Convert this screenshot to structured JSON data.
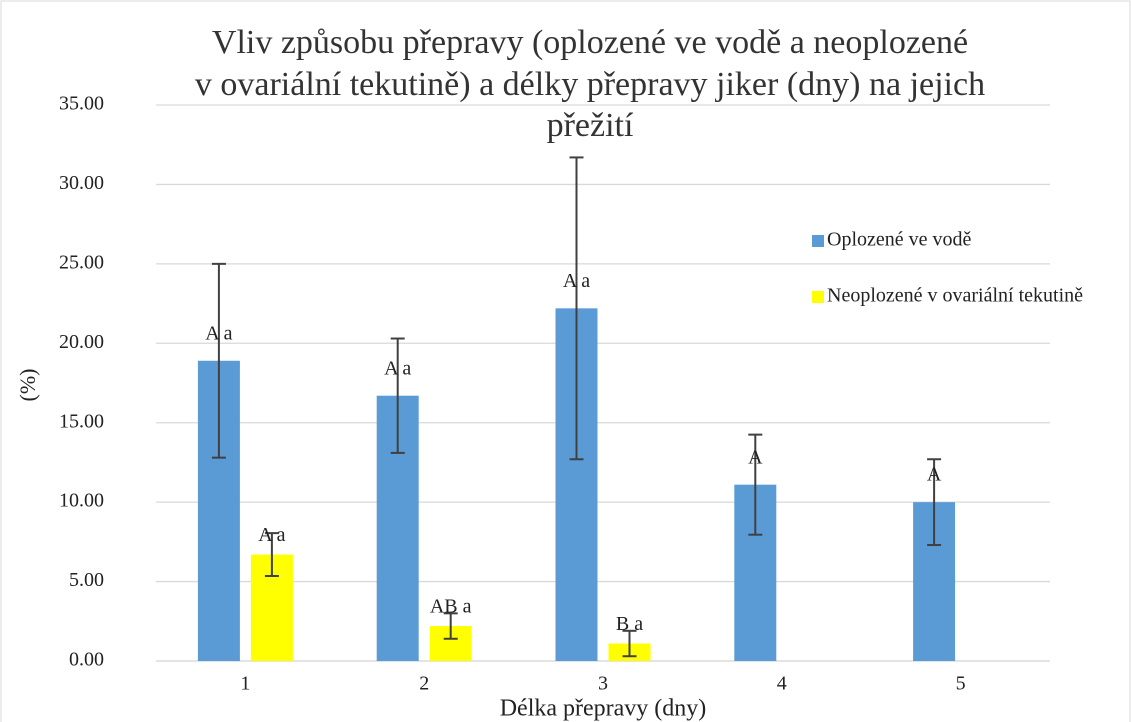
{
  "chart_data": {
    "type": "bar",
    "title": [
      "Vliv způsobu přepravy (oplozené ve vodě a neoplozené",
      "v ovariální tekutině) a délky přepravy jiker (dny) na jejich",
      "přežití"
    ],
    "xlabel": "Délka přepravy (dny)",
    "ylabel": "(%)",
    "categories": [
      "1",
      "2",
      "3",
      "4",
      "5"
    ],
    "series": [
      {
        "name": "Oplozené ve vodě",
        "color": "#5b9bd5",
        "values": [
          18.9,
          16.7,
          22.2,
          11.1,
          10.0
        ],
        "errors": [
          6.1,
          3.6,
          9.5,
          3.15,
          2.7
        ],
        "letters": [
          "A a",
          "A a",
          "A a",
          "A",
          "A"
        ]
      },
      {
        "name": "Neoplozené v ovariální tekutině",
        "color": "#ffff00",
        "values": [
          6.7,
          2.2,
          1.1,
          null,
          null
        ],
        "errors": [
          1.35,
          0.8,
          0.8,
          null,
          null
        ],
        "letters": [
          "A a",
          "AB a",
          "B a",
          null,
          null
        ]
      }
    ],
    "ylim": [
      0,
      35
    ],
    "yticks": [
      {
        "value": 0,
        "label": "0.00"
      },
      {
        "value": 5,
        "label": "5.00"
      },
      {
        "value": 10,
        "label": "10.00"
      },
      {
        "value": 15,
        "label": "15.00"
      },
      {
        "value": 20,
        "label": "20.00"
      },
      {
        "value": 25,
        "label": "25.00"
      },
      {
        "value": 30,
        "label": "30.00"
      },
      {
        "value": 35,
        "label": "35.00"
      }
    ],
    "grid": true,
    "legend": "right"
  }
}
